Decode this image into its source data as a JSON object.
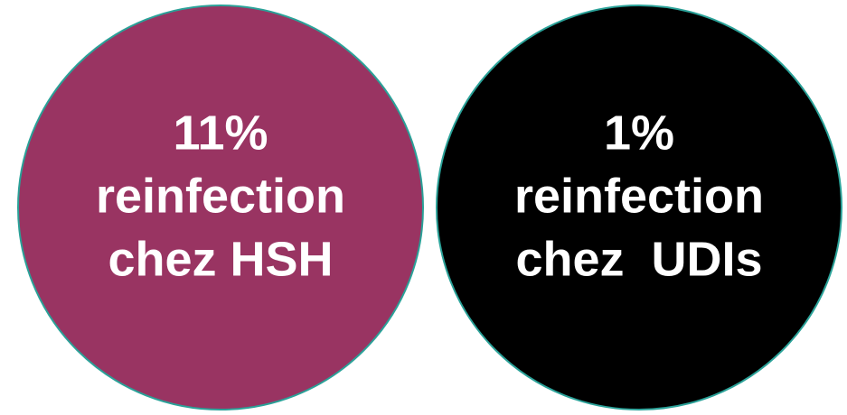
{
  "circles": [
    {
      "lines": [
        "11%",
        "reinfection",
        "chez HSH"
      ]
    },
    {
      "lines": [
        "1%",
        "reinfection",
        "chez  UDIs"
      ]
    }
  ]
}
